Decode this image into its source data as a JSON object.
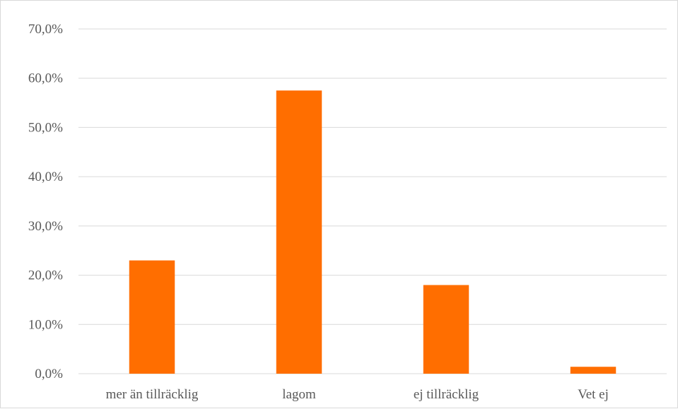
{
  "chart_data": {
    "type": "bar",
    "title": "",
    "xlabel": "",
    "ylabel": "",
    "categories": [
      "mer än tillräcklig",
      "lagom",
      "ej tillräcklig",
      "Vet ej"
    ],
    "values": [
      23.0,
      57.5,
      18.0,
      1.4
    ],
    "ylim": [
      0,
      70
    ],
    "y_ticks": [
      0,
      10,
      20,
      30,
      40,
      50,
      60,
      70
    ],
    "y_tick_labels": [
      "0,0%",
      "10,0%",
      "20,0%",
      "30,0%",
      "40,0%",
      "50,0%",
      "60,0%",
      "70,0%"
    ],
    "grid": true,
    "legend": "none",
    "bar_color": "#ff6e00"
  }
}
